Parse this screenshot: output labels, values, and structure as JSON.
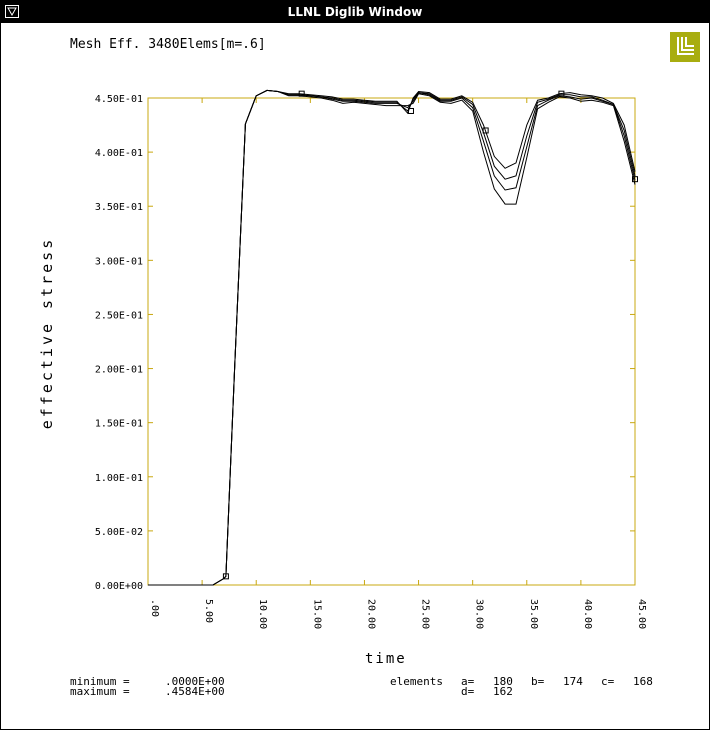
{
  "window": {
    "title": "LLNL Diglib Window"
  },
  "plot_title": "Mesh Eff. 3480Elems[m=.6]",
  "footer": {
    "minimum_label": "minimum =",
    "minimum_value": ".0000E+00",
    "maximum_label": "maximum =",
    "maximum_value": ".4584E+00",
    "elements_label": "elements",
    "a_label": "a=",
    "a_value": "180",
    "b_label": "b=",
    "b_value": "174",
    "c_label": "c=",
    "c_value": "168",
    "d_label": "d=",
    "d_value": "162"
  },
  "colors": {
    "titlebar": "#000000",
    "plot_frame": "#c8a810",
    "logo": "#a8ad10",
    "curve": "#000000"
  },
  "chart_data": {
    "type": "line",
    "title": "Mesh Eff. 3480Elems[m=.6]",
    "xlabel": "time",
    "ylabel": "effective stress",
    "xlim": [
      0,
      45
    ],
    "ylim": [
      0,
      0.45
    ],
    "x_ticks": [
      ".00",
      "5.00",
      "10.00",
      "15.00",
      "20.00",
      "25.00",
      "30.00",
      "35.00",
      "40.00",
      "45.00"
    ],
    "y_ticks": [
      "0.00E+00",
      "5.00E-02",
      "1.00E-01",
      "1.50E-01",
      "2.00E-01",
      "2.50E-01",
      "3.00E-01",
      "3.50E-01",
      "4.00E-01",
      "4.50E-01"
    ],
    "grid": false,
    "series": [
      {
        "name": "a",
        "x": [
          0,
          6,
          7,
          7.2,
          8,
          9,
          10,
          11,
          12,
          13,
          14,
          15,
          16,
          17,
          18,
          19,
          20,
          21,
          22,
          23,
          24,
          24.5,
          25,
          26,
          27,
          28,
          29,
          30,
          31,
          32,
          33,
          34,
          35,
          36,
          37,
          38,
          39,
          40,
          41,
          42,
          43,
          44,
          45
        ],
        "y": [
          0,
          0,
          0.006,
          0.008,
          0.2,
          0.426,
          0.452,
          0.457,
          0.456,
          0.452,
          0.452,
          0.451,
          0.45,
          0.448,
          0.445,
          0.446,
          0.445,
          0.444,
          0.443,
          0.443,
          0.443,
          0.445,
          0.454,
          0.452,
          0.446,
          0.445,
          0.448,
          0.438,
          0.4,
          0.366,
          0.352,
          0.352,
          0.395,
          0.44,
          0.446,
          0.451,
          0.45,
          0.447,
          0.448,
          0.446,
          0.443,
          0.41,
          0.37
        ]
      },
      {
        "name": "b",
        "x": [
          0,
          6,
          7,
          7.2,
          8,
          9,
          10,
          11,
          12,
          13,
          14,
          15,
          16,
          17,
          18,
          19,
          20,
          21,
          22,
          23,
          24,
          24.5,
          25,
          26,
          27,
          28,
          29,
          30,
          31,
          32,
          33,
          34,
          35,
          36,
          37,
          38,
          39,
          40,
          41,
          42,
          43,
          44,
          45
        ],
        "y": [
          0,
          0,
          0.006,
          0.008,
          0.2,
          0.426,
          0.452,
          0.457,
          0.456,
          0.453,
          0.453,
          0.452,
          0.451,
          0.449,
          0.447,
          0.447,
          0.446,
          0.445,
          0.445,
          0.445,
          0.441,
          0.447,
          0.455,
          0.453,
          0.447,
          0.447,
          0.45,
          0.441,
          0.41,
          0.378,
          0.365,
          0.367,
          0.405,
          0.443,
          0.448,
          0.452,
          0.451,
          0.449,
          0.45,
          0.447,
          0.444,
          0.415,
          0.374
        ]
      },
      {
        "name": "c",
        "x": [
          0,
          6,
          7,
          7.2,
          8,
          9,
          10,
          11,
          12,
          13,
          14,
          15,
          16,
          17,
          18,
          19,
          20,
          21,
          22,
          23,
          24,
          24.5,
          25,
          26,
          27,
          28,
          29,
          30,
          31,
          32,
          33,
          34,
          35,
          36,
          37,
          38,
          39,
          40,
          41,
          42,
          43,
          44,
          45
        ],
        "y": [
          0,
          0,
          0.006,
          0.008,
          0.2,
          0.426,
          0.452,
          0.457,
          0.456,
          0.453,
          0.453,
          0.452,
          0.451,
          0.45,
          0.448,
          0.448,
          0.447,
          0.446,
          0.446,
          0.446,
          0.438,
          0.449,
          0.455,
          0.454,
          0.448,
          0.448,
          0.451,
          0.444,
          0.418,
          0.387,
          0.375,
          0.378,
          0.415,
          0.446,
          0.449,
          0.453,
          0.453,
          0.451,
          0.451,
          0.448,
          0.444,
          0.42,
          0.378
        ]
      },
      {
        "name": "d",
        "x": [
          0,
          6,
          7,
          7.2,
          8,
          9,
          10,
          11,
          12,
          13,
          14,
          15,
          16,
          17,
          18,
          19,
          20,
          21,
          22,
          23,
          24,
          24.5,
          25,
          26,
          27,
          28,
          29,
          30,
          31,
          32,
          33,
          34,
          35,
          36,
          37,
          38,
          39,
          40,
          41,
          42,
          43,
          44,
          45
        ],
        "y": [
          0,
          0,
          0.006,
          0.008,
          0.2,
          0.426,
          0.452,
          0.457,
          0.456,
          0.454,
          0.454,
          0.453,
          0.452,
          0.451,
          0.449,
          0.449,
          0.448,
          0.447,
          0.447,
          0.447,
          0.436,
          0.45,
          0.456,
          0.455,
          0.449,
          0.449,
          0.452,
          0.446,
          0.425,
          0.396,
          0.385,
          0.39,
          0.425,
          0.448,
          0.45,
          0.454,
          0.455,
          0.453,
          0.452,
          0.45,
          0.445,
          0.425,
          0.382
        ]
      }
    ],
    "markers": [
      {
        "x": 7.2,
        "y": 0.008
      },
      {
        "x": 14.2,
        "y": 0.454
      },
      {
        "x": 24.3,
        "y": 0.438
      },
      {
        "x": 31.2,
        "y": 0.42
      },
      {
        "x": 38.2,
        "y": 0.454
      },
      {
        "x": 45,
        "y": 0.375
      }
    ]
  }
}
